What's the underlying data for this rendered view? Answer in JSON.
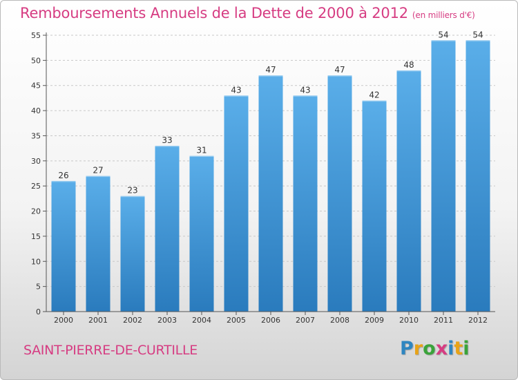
{
  "chart_data": {
    "type": "bar",
    "title": "Remboursements Annuels de la Dette de 2000 à 2012",
    "subtitle": "(en milliers d'€)",
    "categories": [
      "2000",
      "2001",
      "2002",
      "2003",
      "2004",
      "2005",
      "2006",
      "2007",
      "2008",
      "2009",
      "2010",
      "2011",
      "2012"
    ],
    "values": [
      26,
      27,
      23,
      33,
      31,
      43,
      47,
      43,
      47,
      42,
      48,
      54,
      54
    ],
    "xlabel": "",
    "ylabel": "",
    "ylim": [
      0,
      55
    ],
    "yticks": [
      0,
      5,
      10,
      15,
      20,
      25,
      30,
      35,
      40,
      45,
      50,
      55
    ],
    "grid": true,
    "bar_color_top": "#5aaee9",
    "bar_color_bottom": "#2a7bbd"
  },
  "footer": {
    "commune": "SAINT-PIERRE-DE-CURTILLE"
  },
  "brand": {
    "name": "Proxiti",
    "letters": [
      {
        "ch": "P",
        "color": "#2e86c1"
      },
      {
        "ch": "r",
        "color": "#e8a317"
      },
      {
        "ch": "o",
        "color": "#3aa33a"
      },
      {
        "ch": "x",
        "color": "#d63c82"
      },
      {
        "ch": "i",
        "color": "#2e86c1"
      },
      {
        "ch": "t",
        "color": "#e8a317"
      },
      {
        "ch": "i",
        "color": "#3aa33a"
      }
    ]
  },
  "colors": {
    "accent": "#d63c82",
    "grid": "#c8c8c8",
    "axis": "#555555"
  }
}
